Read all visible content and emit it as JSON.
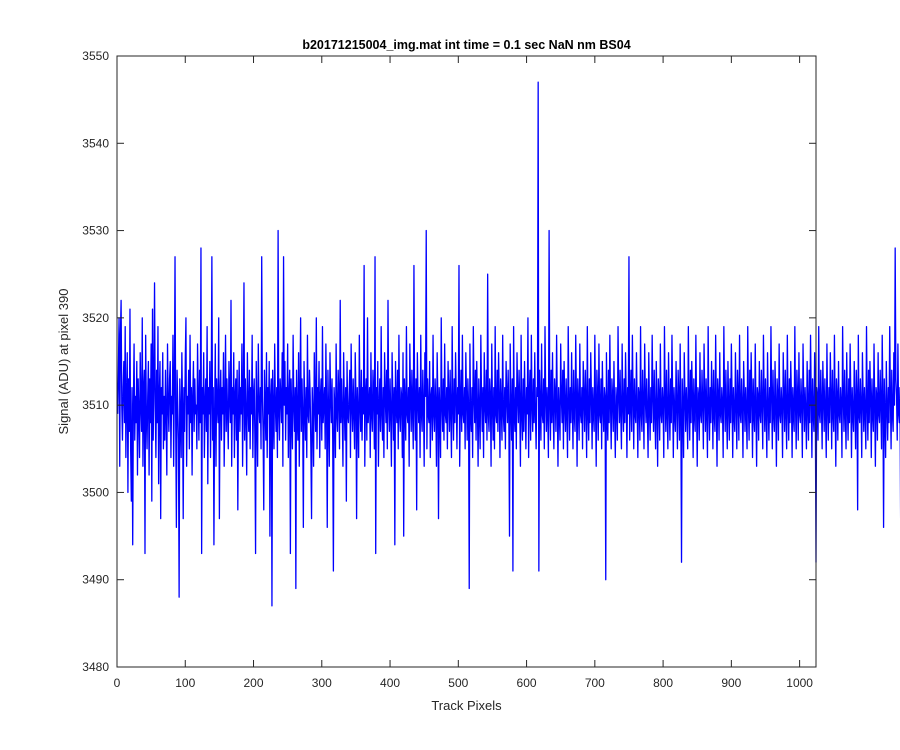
{
  "chart_data": {
    "type": "line",
    "title": "b20171215004_img.mat int time = 0.1 sec  NaN nm BS04",
    "xlabel": "Track Pixels",
    "ylabel": "Signal (ADU) at pixel 390",
    "xlim": [
      0,
      1024
    ],
    "ylim": [
      3480,
      3550
    ],
    "xticks": [
      0,
      100,
      200,
      300,
      400,
      500,
      600,
      700,
      800,
      900,
      1000
    ],
    "yticks": [
      3480,
      3490,
      3500,
      3510,
      3520,
      3530,
      3540,
      3550
    ],
    "grid": false,
    "line_color": "#0000ff",
    "series": [
      {
        "x_start": 1,
        "x_step": 1,
        "values": [
          3509,
          3514,
          3520,
          3503,
          3518,
          3522,
          3510,
          3506,
          3512,
          3515,
          3508,
          3519,
          3504,
          3511,
          3516,
          3500,
          3513,
          3507,
          3521,
          3505,
          3499,
          3512,
          3494,
          3510,
          3517,
          3506,
          3511,
          3508,
          3515,
          3502,
          3513,
          3509,
          3504,
          3516,
          3510,
          3507,
          3520,
          3503,
          3512,
          3514,
          3493,
          3518,
          3509,
          3505,
          3511,
          3515,
          3502,
          3513,
          3508,
          3517,
          3499,
          3521,
          3506,
          3512,
          3524,
          3510,
          3504,
          3514,
          3508,
          3519,
          3501,
          3511,
          3515,
          3497,
          3512,
          3509,
          3516,
          3505,
          3511,
          3506,
          3514,
          3509,
          3502,
          3517,
          3510,
          3507,
          3513,
          3515,
          3504,
          3511,
          3509,
          3518,
          3503,
          3512,
          3527,
          3508,
          3496,
          3514,
          3510,
          3506,
          3488,
          3513,
          3509,
          3504,
          3516,
          3510,
          3497,
          3512,
          3507,
          3515,
          3520,
          3503,
          3511,
          3509,
          3514,
          3505,
          3518,
          3508,
          3512,
          3502,
          3511,
          3515,
          3507,
          3513,
          3509,
          3510,
          3505,
          3517,
          3511,
          3506,
          3514,
          3508,
          3528,
          3493,
          3512,
          3509,
          3516,
          3504,
          3510,
          3513,
          3507,
          3519,
          3501,
          3512,
          3509,
          3515,
          3504,
          3511,
          3527,
          3506,
          3512,
          3494,
          3509,
          3517,
          3503,
          3513,
          3510,
          3508,
          3520,
          3497,
          3511,
          3514,
          3506,
          3512,
          3509,
          3516,
          3503,
          3510,
          3518,
          3507,
          3513,
          3509,
          3505,
          3515,
          3511,
          3508,
          3522,
          3503,
          3512,
          3509,
          3516,
          3504,
          3511,
          3513,
          3506,
          3514,
          3498,
          3510,
          3515,
          3507,
          3512,
          3509,
          3517,
          3503,
          3511,
          3524,
          3506,
          3513,
          3509,
          3502,
          3516,
          3510,
          3507,
          3514,
          3505,
          3512,
          3509,
          3518,
          3504,
          3511,
          3513,
          3506,
          3493,
          3515,
          3509,
          3503,
          3517,
          3510,
          3508,
          3512,
          3505,
          3527,
          3511,
          3507,
          3498,
          3514,
          3510,
          3506,
          3516,
          3504,
          3512,
          3509,
          3515,
          3495,
          3511,
          3513,
          3487,
          3514,
          3509,
          3505,
          3517,
          3510,
          3507,
          3512,
          3504,
          3530,
          3509,
          3506,
          3513,
          3511,
          3508,
          3516,
          3503,
          3527,
          3510,
          3515,
          3506,
          3512,
          3509,
          3517,
          3504,
          3511,
          3514,
          3493,
          3513,
          3509,
          3505,
          3518,
          3510,
          3507,
          3512,
          3489,
          3514,
          3509,
          3506,
          3516,
          3503,
          3511,
          3520,
          3507,
          3513,
          3509,
          3496,
          3515,
          3510,
          3506,
          3512,
          3504,
          3518,
          3509,
          3508,
          3514,
          3511,
          3505,
          3497,
          3512,
          3509,
          3503,
          3516,
          3510,
          3507,
          3520,
          3505,
          3512,
          3509,
          3515,
          3504,
          3511,
          3513,
          3506,
          3519,
          3508,
          3510,
          3512,
          3505,
          3517,
          3510,
          3496,
          3514,
          3509,
          3503,
          3516,
          3511,
          3508,
          3513,
          3506,
          3491,
          3512,
          3510,
          3504,
          3517,
          3509,
          3507,
          3514,
          3511,
          3505,
          3522,
          3508,
          3513,
          3509,
          3503,
          3516,
          3510,
          3506,
          3512,
          3499,
          3515,
          3509,
          3508,
          3511,
          3514,
          3504,
          3517,
          3510,
          3507,
          3513,
          3509,
          3505,
          3516,
          3511,
          3497,
          3512,
          3509,
          3504,
          3518,
          3510,
          3507,
          3514,
          3506,
          3512,
          3509,
          3526,
          3503,
          3511,
          3513,
          3506,
          3520,
          3508,
          3510,
          3512,
          3504,
          3516,
          3509,
          3507,
          3514,
          3511,
          3505,
          3527,
          3493,
          3512,
          3509,
          3515,
          3503,
          3510,
          3513,
          3507,
          3519,
          3509,
          3506,
          3512,
          3504,
          3516,
          3511,
          3508,
          3514,
          3505,
          3522,
          3510,
          3507,
          3513,
          3509,
          3503,
          3516,
          3511,
          3506,
          3512,
          3494,
          3515,
          3510,
          3508,
          3514,
          3505,
          3518,
          3509,
          3507,
          3512,
          3511,
          3504,
          3516,
          3495,
          3513,
          3510,
          3506,
          3519,
          3509,
          3508,
          3512,
          3503,
          3517,
          3511,
          3507,
          3514,
          3509,
          3505,
          3526,
          3510,
          3506,
          3513,
          3498,
          3516,
          3511,
          3508,
          3512,
          3504,
          3518,
          3509,
          3507,
          3514,
          3510,
          3503,
          3516,
          3511,
          3530,
          3505,
          3513,
          3509,
          3508,
          3515,
          3504,
          3511,
          3512,
          3506,
          3518,
          3509,
          3507,
          3513,
          3510,
          3503,
          3516,
          3511,
          3497,
          3512,
          3509,
          3504,
          3520,
          3510,
          3507,
          3513,
          3506,
          3517,
          3509,
          3508,
          3512,
          3505,
          3515,
          3511,
          3507,
          3514,
          3509,
          3504,
          3519,
          3510,
          3506,
          3513,
          3508,
          3516,
          3511,
          3505,
          3512,
          3509,
          3526,
          3503,
          3510,
          3514,
          3507,
          3518,
          3509,
          3508,
          3512,
          3505,
          3516,
          3511,
          3506,
          3513,
          3510,
          3489,
          3517,
          3509,
          3507,
          3512,
          3504,
          3519,
          3511,
          3508,
          3514,
          3506,
          3515,
          3510,
          3503,
          3513,
          3509,
          3505,
          3518,
          3511,
          3507,
          3512,
          3504,
          3516,
          3510,
          3508,
          3514,
          3506,
          3525,
          3509,
          3507,
          3513,
          3511,
          3503,
          3517,
          3510,
          3506,
          3512,
          3505,
          3519,
          3509,
          3508,
          3514,
          3507,
          3516,
          3511,
          3504,
          3513,
          3510,
          3506,
          3518,
          3509,
          3507,
          3512,
          3505,
          3515,
          3511,
          3508,
          3514,
          3509,
          3495,
          3517,
          3510,
          3506,
          3513,
          3491,
          3519,
          3509,
          3507,
          3512,
          3505,
          3516,
          3511,
          3508,
          3514,
          3510,
          3503,
          3518,
          3509,
          3506,
          3513,
          3507,
          3515,
          3510,
          3505,
          3512,
          3509,
          3520,
          3504,
          3511,
          3514,
          3506,
          3518,
          3510,
          3507,
          3513,
          3508,
          3516,
          3509,
          3505,
          3512,
          3511,
          3547,
          3491,
          3514,
          3510,
          3506,
          3517,
          3509,
          3508,
          3513,
          3505,
          3519,
          3511,
          3507,
          3512,
          3509,
          3504,
          3530,
          3510,
          3506,
          3514,
          3508,
          3516,
          3509,
          3505,
          3513,
          3511,
          3507,
          3518,
          3510,
          3503,
          3512,
          3509,
          3506,
          3517,
          3511,
          3508,
          3514,
          3505,
          3515,
          3510,
          3507,
          3513,
          3509,
          3504,
          3519,
          3511,
          3506,
          3512,
          3508,
          3516,
          3510,
          3505,
          3514,
          3509,
          3507,
          3518,
          3511,
          3503,
          3513,
          3510,
          3506,
          3517,
          3509,
          3508,
          3512,
          3505,
          3515,
          3511,
          3507,
          3514,
          3510,
          3504,
          3519,
          3509,
          3506,
          3513,
          3508,
          3516,
          3511,
          3505,
          3512,
          3509,
          3507,
          3518,
          3510,
          3503,
          3514,
          3511,
          3506,
          3517,
          3509,
          3508,
          3513,
          3505,
          3515,
          3510,
          3507,
          3512,
          3511,
          3490,
          3516,
          3509,
          3506,
          3514,
          3508,
          3518,
          3510,
          3505,
          3513,
          3511,
          3507,
          3515,
          3509,
          3504,
          3512,
          3510,
          3506,
          3519,
          3511,
          3508,
          3514,
          3509,
          3505,
          3517,
          3510,
          3507,
          3513,
          3508,
          3516,
          3511,
          3504,
          3512,
          3509,
          3527,
          3506,
          3510,
          3514,
          3507,
          3518,
          3511,
          3505,
          3513,
          3509,
          3508,
          3516,
          3510,
          3504,
          3512,
          3511,
          3506,
          3519,
          3509,
          3507,
          3514,
          3510,
          3505,
          3517,
          3511,
          3508,
          3513,
          3509,
          3504,
          3516,
          3510,
          3506,
          3512,
          3508,
          3518,
          3511,
          3507,
          3514,
          3509,
          3505,
          3515,
          3510,
          3503,
          3513,
          3511,
          3506,
          3517,
          3509,
          3508,
          3512,
          3510,
          3504,
          3519,
          3511,
          3507,
          3514,
          3509,
          3505,
          3516,
          3510,
          3506,
          3513,
          3508,
          3518,
          3511,
          3504,
          3512,
          3509,
          3507,
          3515,
          3510,
          3505,
          3514,
          3511,
          3506,
          3517,
          3509,
          3492,
          3513,
          3510,
          3504,
          3516,
          3511,
          3507,
          3512,
          3509,
          3505,
          3519,
          3510,
          3506,
          3514,
          3508,
          3515,
          3511,
          3504,
          3513,
          3509,
          3507,
          3518,
          3510,
          3503,
          3512,
          3511,
          3506,
          3516,
          3509,
          3508,
          3514,
          3510,
          3505,
          3517,
          3511,
          3507,
          3513,
          3509,
          3504,
          3519,
          3510,
          3506,
          3512,
          3508,
          3515,
          3511,
          3505,
          3514,
          3509,
          3507,
          3518,
          3510,
          3503,
          3513,
          3511,
          3506,
          3516,
          3509,
          3508,
          3512,
          3510,
          3504,
          3519,
          3511,
          3507,
          3514,
          3509,
          3505,
          3515,
          3510,
          3506,
          3513,
          3508,
          3517,
          3511,
          3504,
          3512,
          3509,
          3507,
          3516,
          3510,
          3505,
          3514,
          3511,
          3506,
          3518,
          3509,
          3508,
          3513,
          3510,
          3504,
          3515,
          3511,
          3507,
          3512,
          3509,
          3505,
          3519,
          3510,
          3506,
          3514,
          3508,
          3516,
          3511,
          3504,
          3513,
          3509,
          3507,
          3517,
          3510,
          3503,
          3512,
          3511,
          3506,
          3515,
          3509,
          3508,
          3514,
          3510,
          3505,
          3518,
          3511,
          3507,
          3513,
          3509,
          3504,
          3516,
          3510,
          3506,
          3512,
          3508,
          3519,
          3511,
          3505,
          3514,
          3509,
          3507,
          3515,
          3510,
          3503,
          3513,
          3511,
          3506,
          3517,
          3509,
          3508,
          3512,
          3510,
          3504,
          3516,
          3511,
          3507,
          3514,
          3509,
          3505,
          3518,
          3510,
          3506,
          3513,
          3508,
          3515,
          3511,
          3504,
          3512,
          3509,
          3507,
          3519,
          3510,
          3505,
          3514,
          3511,
          3506,
          3516,
          3509,
          3508,
          3513,
          3510,
          3504,
          3517,
          3511,
          3507,
          3512,
          3509,
          3505,
          3515,
          3510,
          3506,
          3514,
          3508,
          3518,
          3511,
          3504,
          3513,
          3509,
          3507,
          3516,
          3510,
          3492,
          3512,
          3511,
          3506,
          3519,
          3509,
          3508,
          3514,
          3510,
          3505,
          3515,
          3511,
          3507,
          3513,
          3509,
          3504,
          3517,
          3510,
          3506,
          3512,
          3508,
          3516,
          3511,
          3505,
          3514,
          3509,
          3507,
          3518,
          3510,
          3503,
          3513,
          3511,
          3506,
          3515,
          3509,
          3508,
          3512,
          3510,
          3504,
          3519,
          3511,
          3507,
          3514,
          3509,
          3505,
          3516,
          3510,
          3506,
          3513,
          3508,
          3517,
          3511,
          3504,
          3512,
          3509,
          3507,
          3515,
          3510,
          3505,
          3514,
          3511,
          3498,
          3518,
          3509,
          3508,
          3513,
          3510,
          3504,
          3516,
          3511,
          3507,
          3512,
          3509,
          3505,
          3519,
          3510,
          3506,
          3514,
          3508,
          3515,
          3511,
          3504,
          3513,
          3509,
          3507,
          3517,
          3510,
          3503,
          3512,
          3511,
          3506,
          3516,
          3509,
          3508,
          3514,
          3510,
          3505,
          3518,
          3511,
          3496,
          3513,
          3509,
          3504,
          3515,
          3510,
          3506,
          3512,
          3508,
          3519,
          3511,
          3505,
          3514,
          3509,
          3507,
          3516,
          3510,
          3528,
          3513,
          3511,
          3506,
          3517,
          3509,
          3508,
          3512,
          3497,
          3504,
          3515,
          3498,
          3520,
          3499,
          3514,
          3509
        ]
      }
    ]
  }
}
